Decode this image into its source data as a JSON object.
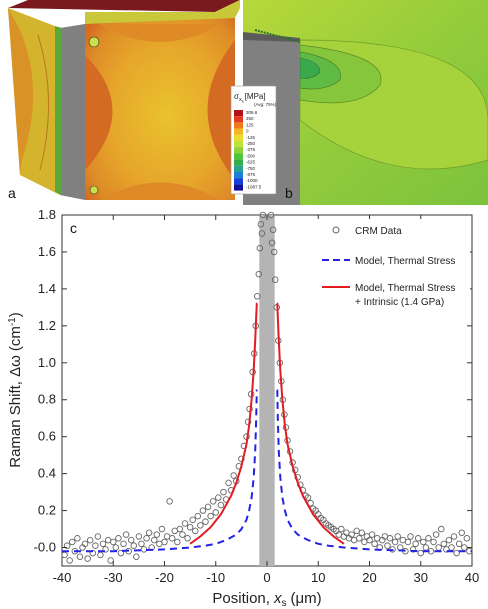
{
  "panels": {
    "a_label": "a",
    "b_label": "b",
    "c_label": "c",
    "colorbar": {
      "title_symbol": "σ",
      "title_subscript": "x",
      "title_subsubscript": "s",
      "title_units": "[MPa]",
      "subtitle": "(Avg: 75%)",
      "ticks": [
        "306.6",
        "250",
        "125",
        "0",
        "-125",
        "-250",
        "-375",
        "-500",
        "-625",
        "-750",
        "-875",
        "-1000",
        "-1087.5"
      ],
      "colors": [
        "#b0121b",
        "#e03a22",
        "#f07a1c",
        "#f4b621",
        "#e9dc2d",
        "#bfe23a",
        "#8ed13b",
        "#52c33d",
        "#31ad4a",
        "#27a392",
        "#1f7ed6",
        "#1640d8",
        "#10109c"
      ]
    },
    "colors": {
      "cube_top": "#7a1a1f",
      "cube_face": "#e0a52c",
      "cube_side": "#c4b02d",
      "via": "#808080",
      "zoom_bg": "#8fcf3a"
    }
  },
  "chart_data": {
    "type": "scatter",
    "xlabel_prefix": "Position,",
    "xlabel_var": "x",
    "xlabel_sub": "s",
    "xlabel_units": "(μm)",
    "ylabel_main": "Raman Shift, Δω",
    "ylabel_units": "(cm",
    "ylabel_sup": "-1",
    "ylabel_close": ")",
    "xlim": [
      -40,
      40
    ],
    "ylim": [
      -0.1,
      1.8
    ],
    "xticks": [
      "-40",
      "-30",
      "-20",
      "-10",
      "0",
      "10",
      "20",
      "30",
      "40"
    ],
    "xtick_values": [
      -40,
      -30,
      -20,
      -10,
      0,
      10,
      20,
      30,
      40
    ],
    "yticks": [
      "-0.0",
      "0.2",
      "0.4",
      "0.6",
      "0.8",
      "1.0",
      "1.2",
      "1.4",
      "1.6",
      "1.8"
    ],
    "ytick_values": [
      0,
      0.2,
      0.4,
      0.6,
      0.8,
      1.0,
      1.2,
      1.4,
      1.6,
      1.8
    ],
    "shaded_region": [
      -1.5,
      1.5
    ],
    "legend_position": "top-right",
    "legend": [
      {
        "label": "CRM Data",
        "style": "circle"
      },
      {
        "label": "Model, Thermal Stress",
        "style": "dashed"
      },
      {
        "label": "Model, Thermal Stress",
        "label2": "+ Intrinsic (1.4 GPa)",
        "style": "solid"
      }
    ],
    "series": [
      {
        "name": "CRM Data",
        "color": "#666666",
        "points": [
          [
            -39.5,
            -0.04
          ],
          [
            -39,
            0.01
          ],
          [
            -38.5,
            -0.07
          ],
          [
            -38,
            0.03
          ],
          [
            -37.5,
            -0.02
          ],
          [
            -37,
            0.05
          ],
          [
            -36.5,
            -0.05
          ],
          [
            -36,
            0.0
          ],
          [
            -35.5,
            0.02
          ],
          [
            -35,
            -0.06
          ],
          [
            -34.5,
            0.04
          ],
          [
            -34,
            -0.03
          ],
          [
            -33.5,
            0.01
          ],
          [
            -33,
            0.06
          ],
          [
            -32.5,
            -0.04
          ],
          [
            -32,
            0.02
          ],
          [
            -31.5,
            -0.01
          ],
          [
            -31,
            0.04
          ],
          [
            -30.5,
            -0.07
          ],
          [
            -30,
            0.03
          ],
          [
            -29.5,
            0.0
          ],
          [
            -29,
            0.05
          ],
          [
            -28.5,
            -0.03
          ],
          [
            -28,
            0.02
          ],
          [
            -27.5,
            0.07
          ],
          [
            -27,
            -0.02
          ],
          [
            -26.5,
            0.04
          ],
          [
            -26,
            0.01
          ],
          [
            -25.5,
            -0.05
          ],
          [
            -25,
            0.06
          ],
          [
            -24.5,
            0.02
          ],
          [
            -24,
            -0.01
          ],
          [
            -23.5,
            0.05
          ],
          [
            -23,
            0.08
          ],
          [
            -22.5,
            0.0
          ],
          [
            -22,
            0.04
          ],
          [
            -21.5,
            0.07
          ],
          [
            -21,
            0.02
          ],
          [
            -20.5,
            0.1
          ],
          [
            -20,
            0.03
          ],
          [
            -19.5,
            0.06
          ],
          [
            -19,
            0.25
          ],
          [
            -18.5,
            0.05
          ],
          [
            -18,
            0.09
          ],
          [
            -17.5,
            0.03
          ],
          [
            -17,
            0.1
          ],
          [
            -16.5,
            0.07
          ],
          [
            -16,
            0.13
          ],
          [
            -15.5,
            0.05
          ],
          [
            -15,
            0.11
          ],
          [
            -14.5,
            0.15
          ],
          [
            -14,
            0.09
          ],
          [
            -13.5,
            0.17
          ],
          [
            -13,
            0.12
          ],
          [
            -12.5,
            0.2
          ],
          [
            -12,
            0.14
          ],
          [
            -11.5,
            0.22
          ],
          [
            -11,
            0.17
          ],
          [
            -10.5,
            0.25
          ],
          [
            -10,
            0.19
          ],
          [
            -9.5,
            0.27
          ],
          [
            -9,
            0.23
          ],
          [
            -8.5,
            0.3
          ],
          [
            -8,
            0.26
          ],
          [
            -7.5,
            0.35
          ],
          [
            -7,
            0.31
          ],
          [
            -6.5,
            0.39
          ],
          [
            -6,
            0.36
          ],
          [
            -5.5,
            0.44
          ],
          [
            -5,
            0.48
          ],
          [
            -4.5,
            0.55
          ],
          [
            -4,
            0.6
          ],
          [
            -3.7,
            0.68
          ],
          [
            -3.4,
            0.75
          ],
          [
            -3.1,
            0.83
          ],
          [
            -2.8,
            0.95
          ],
          [
            -2.5,
            1.05
          ],
          [
            -2.2,
            1.2
          ],
          [
            -1.9,
            1.36
          ],
          [
            -1.6,
            1.48
          ],
          [
            -1.4,
            1.62
          ],
          [
            -1.2,
            1.75
          ],
          [
            -1.0,
            1.7
          ],
          [
            -0.8,
            1.8
          ],
          [
            0.8,
            1.8
          ],
          [
            1.0,
            1.65
          ],
          [
            1.2,
            1.72
          ],
          [
            1.4,
            1.6
          ],
          [
            1.6,
            1.45
          ],
          [
            1.9,
            1.3
          ],
          [
            2.2,
            1.12
          ],
          [
            2.5,
            1.0
          ],
          [
            2.8,
            0.9
          ],
          [
            3.1,
            0.8
          ],
          [
            3.4,
            0.72
          ],
          [
            3.7,
            0.65
          ],
          [
            4,
            0.58
          ],
          [
            4.5,
            0.52
          ],
          [
            5,
            0.46
          ],
          [
            5.5,
            0.42
          ],
          [
            6,
            0.38
          ],
          [
            6.5,
            0.34
          ],
          [
            7,
            0.31
          ],
          [
            7.5,
            0.28
          ],
          [
            8,
            0.27
          ],
          [
            8.5,
            0.24
          ],
          [
            9,
            0.21
          ],
          [
            9.5,
            0.2
          ],
          [
            10,
            0.18
          ],
          [
            10.5,
            0.16
          ],
          [
            11,
            0.15
          ],
          [
            11.5,
            0.13
          ],
          [
            12,
            0.12
          ],
          [
            12.5,
            0.11
          ],
          [
            13,
            0.1
          ],
          [
            13.5,
            0.09
          ],
          [
            14,
            0.07
          ],
          [
            14.5,
            0.1
          ],
          [
            15,
            0.06
          ],
          [
            15.5,
            0.08
          ],
          [
            16,
            0.05
          ],
          [
            16.5,
            0.07
          ],
          [
            17,
            0.04
          ],
          [
            17.5,
            0.09
          ],
          [
            18,
            0.05
          ],
          [
            18.5,
            0.08
          ],
          [
            19,
            0.03
          ],
          [
            19.5,
            0.06
          ],
          [
            20,
            0.04
          ],
          [
            20.5,
            0.07
          ],
          [
            21,
            0.02
          ],
          [
            21.5,
            0.05
          ],
          [
            22,
            0.0
          ],
          [
            22.5,
            0.04
          ],
          [
            23,
            0.06
          ],
          [
            23.5,
            0.01
          ],
          [
            24,
            0.05
          ],
          [
            24.5,
            -0.01
          ],
          [
            25,
            0.03
          ],
          [
            25.5,
            0.06
          ],
          [
            26,
            0.0
          ],
          [
            26.5,
            0.04
          ],
          [
            27,
            -0.02
          ],
          [
            27.5,
            0.03
          ],
          [
            28,
            0.06
          ],
          [
            28.5,
            -0.01
          ],
          [
            29,
            0.02
          ],
          [
            29.5,
            0.05
          ],
          [
            30,
            -0.03
          ],
          [
            30.5,
            0.03
          ],
          [
            31,
            0.0
          ],
          [
            31.5,
            0.05
          ],
          [
            32,
            -0.02
          ],
          [
            32.5,
            0.03
          ],
          [
            33,
            0.07
          ],
          [
            33.5,
            0.0
          ],
          [
            34,
            0.1
          ],
          [
            34.5,
            0.02
          ],
          [
            35,
            -0.01
          ],
          [
            35.5,
            0.04
          ],
          [
            36,
            0.0
          ],
          [
            36.5,
            0.06
          ],
          [
            37,
            -0.03
          ],
          [
            37.5,
            0.02
          ],
          [
            38,
            0.08
          ],
          [
            38.5,
            0.0
          ],
          [
            39,
            0.05
          ],
          [
            39.5,
            -0.02
          ]
        ]
      },
      {
        "name": "Model, Thermal Stress",
        "color": "#2323e6",
        "points": [
          [
            -40,
            -0.02
          ],
          [
            -30,
            -0.02
          ],
          [
            -20,
            -0.01
          ],
          [
            -15,
            0.0
          ],
          [
            -12,
            0.01
          ],
          [
            -10,
            0.02
          ],
          [
            -8,
            0.04
          ],
          [
            -6,
            0.07
          ],
          [
            -5,
            0.1
          ],
          [
            -4,
            0.15
          ],
          [
            -3.5,
            0.2
          ],
          [
            -3,
            0.27
          ],
          [
            -2.6,
            0.38
          ],
          [
            -2.3,
            0.52
          ],
          [
            -2.1,
            0.7
          ],
          [
            -2.0,
            0.85
          ],
          [
            -1.9,
            0.85
          ],
          [
            1.9,
            0.85
          ],
          [
            2.0,
            0.85
          ],
          [
            2.1,
            0.7
          ],
          [
            2.3,
            0.52
          ],
          [
            2.6,
            0.38
          ],
          [
            3,
            0.27
          ],
          [
            3.5,
            0.2
          ],
          [
            4,
            0.15
          ],
          [
            5,
            0.1
          ],
          [
            6,
            0.07
          ],
          [
            8,
            0.04
          ],
          [
            10,
            0.02
          ],
          [
            12,
            0.01
          ],
          [
            15,
            0.0
          ],
          [
            20,
            -0.01
          ],
          [
            30,
            -0.02
          ],
          [
            40,
            -0.02
          ]
        ]
      },
      {
        "name": "Model, Thermal Stress + Intrinsic (1.4 GPa)",
        "color": "#e31c23",
        "points": [
          [
            -15,
            0.02
          ],
          [
            -13,
            0.06
          ],
          [
            -11,
            0.11
          ],
          [
            -9,
            0.18
          ],
          [
            -7,
            0.28
          ],
          [
            -6,
            0.35
          ],
          [
            -5,
            0.44
          ],
          [
            -4,
            0.56
          ],
          [
            -3.5,
            0.66
          ],
          [
            -3,
            0.8
          ],
          [
            -2.6,
            0.96
          ],
          [
            -2.3,
            1.12
          ],
          [
            -2.1,
            1.25
          ],
          [
            -2.0,
            1.32
          ],
          [
            -1.9,
            1.32
          ],
          [
            1.9,
            1.32
          ],
          [
            2.0,
            1.32
          ],
          [
            2.1,
            1.25
          ],
          [
            2.3,
            1.12
          ],
          [
            2.6,
            0.96
          ],
          [
            3,
            0.8
          ],
          [
            3.5,
            0.66
          ],
          [
            4,
            0.56
          ],
          [
            5,
            0.44
          ],
          [
            6,
            0.35
          ],
          [
            7,
            0.28
          ],
          [
            9,
            0.18
          ],
          [
            11,
            0.11
          ],
          [
            13,
            0.06
          ],
          [
            15,
            0.02
          ]
        ]
      }
    ]
  }
}
